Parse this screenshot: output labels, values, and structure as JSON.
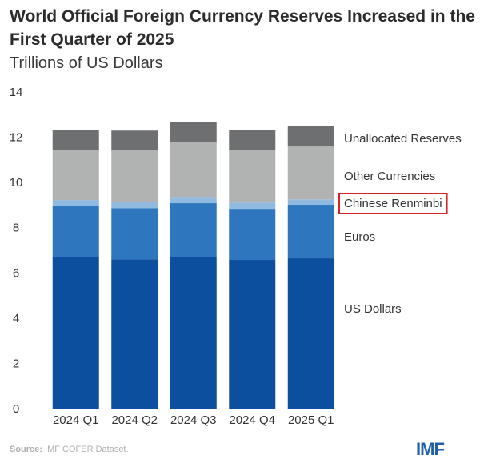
{
  "chart_data": {
    "type": "stacked_bar",
    "title": "World Official Foreign Currency Reserves Increased in the First Quarter of 2025",
    "subtitle": "Trillions of US Dollars",
    "categories": [
      "2024 Q1",
      "2024 Q2",
      "2024 Q3",
      "2024 Q4",
      "2025 Q1"
    ],
    "series": [
      {
        "name": "US Dollars",
        "color": "#0c4f9e",
        "values": [
          6.75,
          6.64,
          6.75,
          6.61,
          6.68
        ]
      },
      {
        "name": "Euros",
        "color": "#2e77bf",
        "values": [
          2.26,
          2.26,
          2.37,
          2.26,
          2.37
        ]
      },
      {
        "name": "Chinese Renminbi",
        "color": "#90badf",
        "values": [
          0.25,
          0.29,
          0.28,
          0.28,
          0.24
        ]
      },
      {
        "name": "Other Currencies",
        "color": "#b1b3b3",
        "values": [
          2.22,
          2.26,
          2.44,
          2.3,
          2.34
        ]
      },
      {
        "name": "Unallocated Reserves",
        "color": "#6e6f70",
        "values": [
          0.89,
          0.88,
          0.88,
          0.92,
          0.91
        ]
      }
    ],
    "ylim": [
      0,
      14
    ],
    "yticks": [
      0,
      2,
      4,
      6,
      8,
      10,
      12,
      14
    ],
    "highlight_color": "#d9232a",
    "source_label": "Source:",
    "source": "IMF COFER Dataset.",
    "logo": "IMF"
  }
}
